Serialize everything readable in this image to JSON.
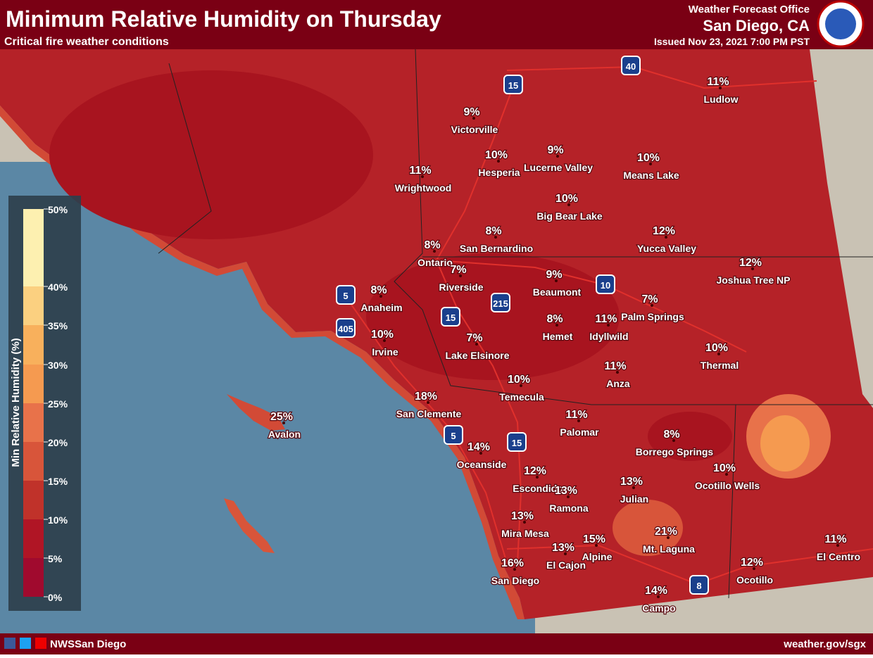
{
  "header": {
    "title": "Minimum Relative Humidity on Thursday",
    "subtitle": "Critical fire weather conditions",
    "office": "Weather Forecast Office",
    "location": "San Diego, CA",
    "issued": "Issued Nov 23, 2021 7:00 PM PST"
  },
  "legend": {
    "title": "Min Relative Humidity (%)",
    "ticks": [
      "50%",
      "40%",
      "35%",
      "30%",
      "25%",
      "20%",
      "15%",
      "10%",
      "5%",
      "0%"
    ]
  },
  "cities": [
    {
      "name": "Ludlow",
      "label": "11%"
    },
    {
      "name": "Victorville",
      "label": "9%"
    },
    {
      "name": "Hesperia",
      "label": "10%"
    },
    {
      "name": "Lucerne Valley",
      "label": "9%"
    },
    {
      "name": "Means Lake",
      "label": "10%"
    },
    {
      "name": "Wrightwood",
      "label": "11%"
    },
    {
      "name": "Big Bear Lake",
      "label": "10%"
    },
    {
      "name": "San Bernardino",
      "label": "8%"
    },
    {
      "name": "Yucca Valley",
      "label": "12%"
    },
    {
      "name": "Ontario",
      "label": "8%"
    },
    {
      "name": "Riverside",
      "label": "7%"
    },
    {
      "name": "Beaumont",
      "label": "9%"
    },
    {
      "name": "Joshua Tree NP",
      "label": "12%"
    },
    {
      "name": "Anaheim",
      "label": "8%"
    },
    {
      "name": "Palm Springs",
      "label": "7%"
    },
    {
      "name": "Hemet",
      "label": "8%"
    },
    {
      "name": "Idyllwild",
      "label": "11%"
    },
    {
      "name": "Irvine",
      "label": "10%"
    },
    {
      "name": "Lake Elsinore",
      "label": "7%"
    },
    {
      "name": "Thermal",
      "label": "10%"
    },
    {
      "name": "Anza",
      "label": "11%"
    },
    {
      "name": "Temecula",
      "label": "10%"
    },
    {
      "name": "San Clemente",
      "label": "18%"
    },
    {
      "name": "Palomar",
      "label": "11%"
    },
    {
      "name": "Avalon",
      "label": "25%"
    },
    {
      "name": "Borrego Springs",
      "label": "8%"
    },
    {
      "name": "Oceanside",
      "label": "14%"
    },
    {
      "name": "Ocotillo Wells",
      "label": "10%"
    },
    {
      "name": "Escondido",
      "label": "12%"
    },
    {
      "name": "Ramona",
      "label": "13%"
    },
    {
      "name": "Julian",
      "label": "13%"
    },
    {
      "name": "Mira Mesa",
      "label": "13%"
    },
    {
      "name": "Mt. Laguna",
      "label": "21%"
    },
    {
      "name": "Alpine",
      "label": "15%"
    },
    {
      "name": "El Cajon",
      "label": "13%"
    },
    {
      "name": "El Centro",
      "label": "11%"
    },
    {
      "name": "San Diego",
      "label": "16%"
    },
    {
      "name": "Ocotillo",
      "label": "12%"
    },
    {
      "name": "Campo",
      "label": "14%"
    }
  ],
  "highways": [
    "15",
    "40",
    "5",
    "405",
    "15",
    "215",
    "10",
    "5",
    "15",
    "8"
  ],
  "footer": {
    "social": "NWSSan Diego",
    "url": "weather.gov/sgx"
  }
}
